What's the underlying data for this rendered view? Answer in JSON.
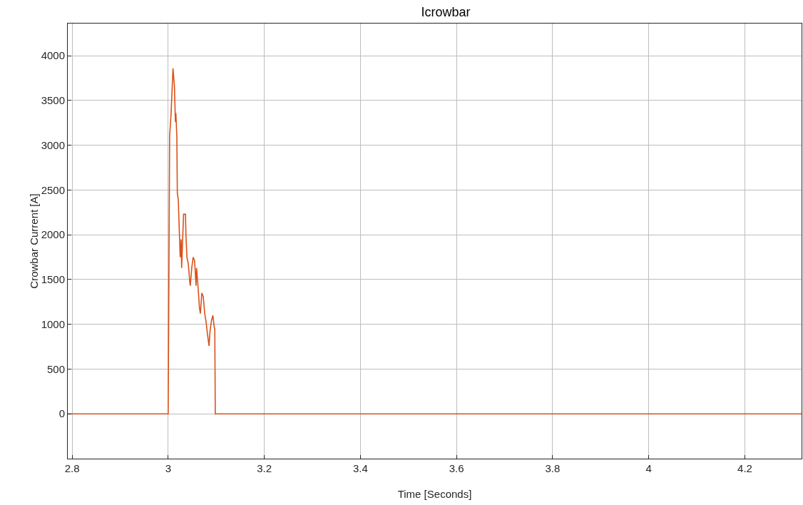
{
  "chart_data": {
    "type": "line",
    "title": "Icrowbar",
    "xlabel": "Time [Seconds]",
    "ylabel": "Crowbar Current [A]",
    "x": [
      2.791,
      3.0,
      3.003,
      3.006,
      3.01,
      3.013,
      3.015,
      3.016,
      3.018,
      3.019,
      3.021,
      3.025,
      3.027,
      3.028,
      3.032,
      3.036,
      3.037,
      3.039,
      3.042,
      3.045,
      3.046,
      3.049,
      3.052,
      3.055,
      3.058,
      3.059,
      3.062,
      3.065,
      3.067,
      3.07,
      3.073,
      3.076,
      3.079,
      3.082,
      3.085,
      3.087,
      3.09,
      3.093,
      3.096,
      3.097,
      3.098,
      4.318
    ],
    "series": [
      {
        "color": "#d95319",
        "values": [
          0,
          0,
          3100,
          3350,
          3860,
          3660,
          3260,
          3360,
          3100,
          2470,
          2390,
          1750,
          1950,
          1630,
          2230,
          2230,
          1990,
          1750,
          1670,
          1470,
          1430,
          1630,
          1750,
          1710,
          1430,
          1630,
          1430,
          1190,
          1120,
          1350,
          1310,
          1120,
          1020,
          880,
          760,
          920,
          1040,
          1100,
          960,
          950,
          0,
          0
        ]
      }
    ],
    "xlim": [
      2.791,
      4.318
    ],
    "xticks": [
      {
        "value": 2.8,
        "label": "2.8"
      },
      3,
      {
        "value": 3.2,
        "label": "3.2"
      },
      {
        "value": 3.4,
        "label": "3.4"
      },
      {
        "value": 3.6,
        "label": "3.6"
      },
      {
        "value": 3.8,
        "label": "3.8"
      },
      4,
      {
        "value": 4.2,
        "label": "4.2"
      }
    ],
    "ylim": [
      -500,
      4360
    ],
    "yticks": [
      0,
      500,
      1000,
      1500,
      2000,
      2500,
      3000,
      3500,
      4000
    ],
    "grid": true,
    "marker": "none",
    "line_style": "solid"
  }
}
